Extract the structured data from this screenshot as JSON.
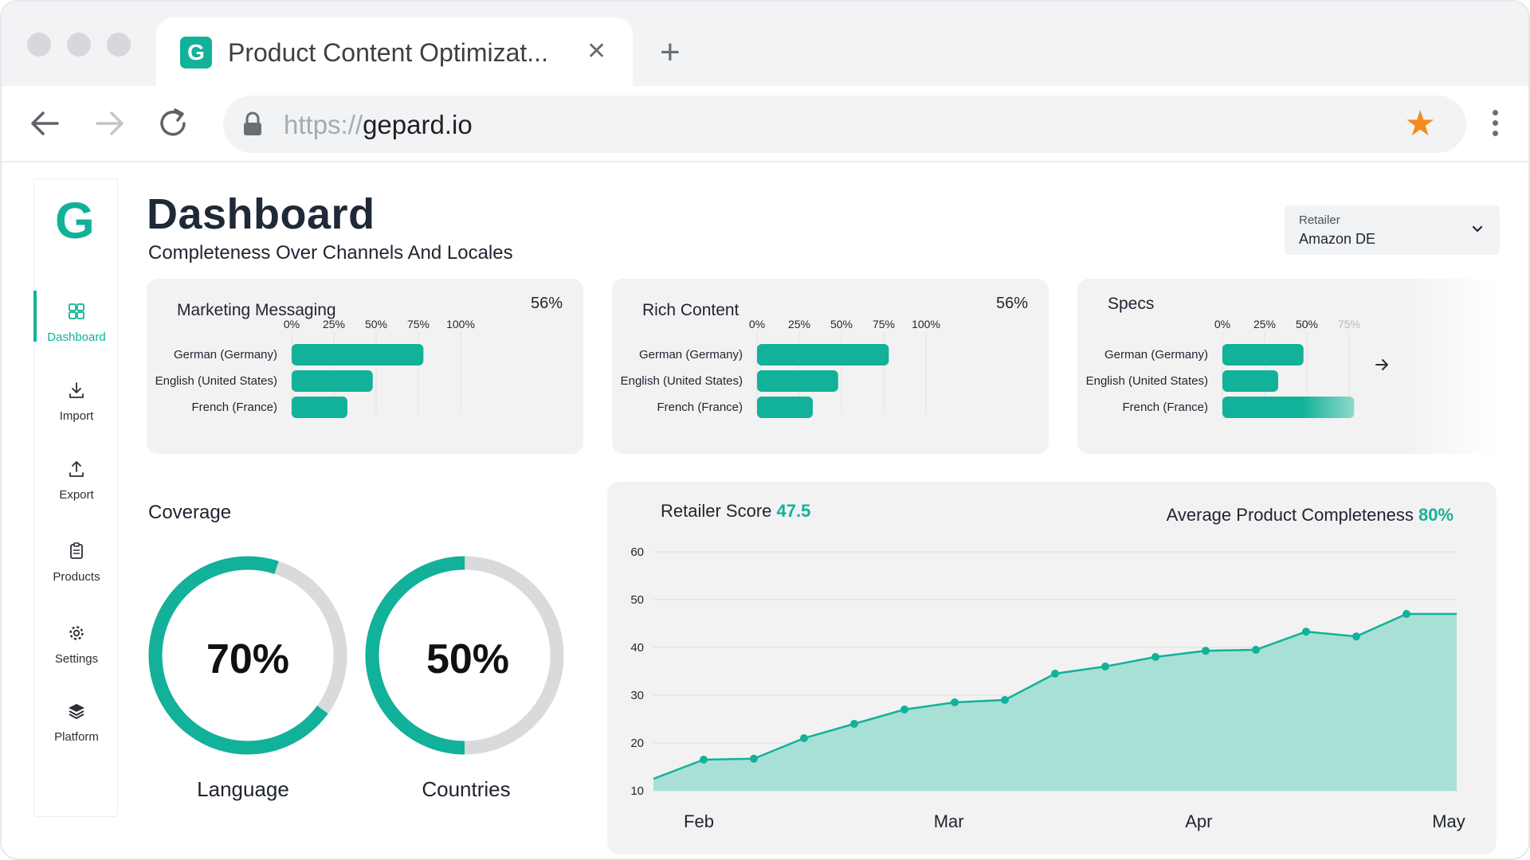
{
  "browser": {
    "tab_title": "Product Content Optimizat...",
    "tab_logo_letter": "G",
    "url_protocol": "https://",
    "url_host": "gepard.io"
  },
  "app": {
    "logo_letter": "G",
    "nav": [
      {
        "label": "Dashboard",
        "icon": "dashboard-icon",
        "active": true
      },
      {
        "label": "Import",
        "icon": "import-icon",
        "active": false
      },
      {
        "label": "Export",
        "icon": "export-icon",
        "active": false
      },
      {
        "label": "Products",
        "icon": "clipboard-icon",
        "active": false
      },
      {
        "label": "Settings",
        "icon": "gear-icon",
        "active": false
      },
      {
        "label": "Platform",
        "icon": "layers-icon",
        "active": false
      }
    ]
  },
  "page": {
    "title": "Dashboard",
    "subtitle": "Completeness Over Channels And Locales"
  },
  "retailer_select": {
    "label": "Retailer",
    "value": "Amazon DE"
  },
  "colors": {
    "accent": "#12b199",
    "card_bg": "#f2f2f2",
    "area_fill": "#a8e0d6"
  },
  "coverage": {
    "title": "Coverage",
    "items": [
      {
        "value_text": "70%",
        "value": 70,
        "label": "Language"
      },
      {
        "value_text": "50%",
        "value": 50,
        "label": "Countries"
      }
    ]
  },
  "score_header": {
    "retailer_score_label": "Retailer Score",
    "retailer_score_value": "47.5",
    "avg_label": "Average Product Completeness",
    "avg_value": "80%"
  },
  "chart_data": [
    {
      "type": "bar",
      "orientation": "horizontal",
      "title": "Marketing Messaging",
      "summary": "56%",
      "ticks": [
        "0%",
        "25%",
        "50%",
        "75%",
        "100%"
      ],
      "categories": [
        "German (Germany)",
        "English (United States)",
        "French (France)"
      ],
      "values": [
        78,
        48,
        33
      ],
      "xlim": [
        0,
        100
      ]
    },
    {
      "type": "bar",
      "orientation": "horizontal",
      "title": "Rich Content",
      "summary": "56%",
      "ticks": [
        "0%",
        "25%",
        "50%",
        "75%",
        "100%"
      ],
      "categories": [
        "German (Germany)",
        "English (United States)",
        "French (France)"
      ],
      "values": [
        78,
        48,
        33
      ],
      "xlim": [
        0,
        100
      ]
    },
    {
      "type": "bar",
      "orientation": "horizontal",
      "title": "Specs",
      "summary": "",
      "ticks": [
        "0%",
        "25%",
        "50%",
        "75%"
      ],
      "categories": [
        "German (Germany)",
        "English (United States)",
        "French (France)"
      ],
      "values": [
        48,
        33,
        78
      ],
      "xlim": [
        0,
        100
      ]
    },
    {
      "type": "area",
      "title": "Retailer Score",
      "x_labels": [
        "Feb",
        "Mar",
        "Apr",
        "May"
      ],
      "y_ticks": [
        10,
        20,
        30,
        40,
        50,
        60
      ],
      "ylim": [
        10,
        60
      ],
      "values": [
        12.5,
        16.5,
        16.7,
        21,
        24,
        27,
        28.5,
        29,
        34.5,
        36,
        38,
        39.3,
        39.5,
        43.3,
        42.3,
        47,
        47
      ],
      "grid": true
    }
  ]
}
